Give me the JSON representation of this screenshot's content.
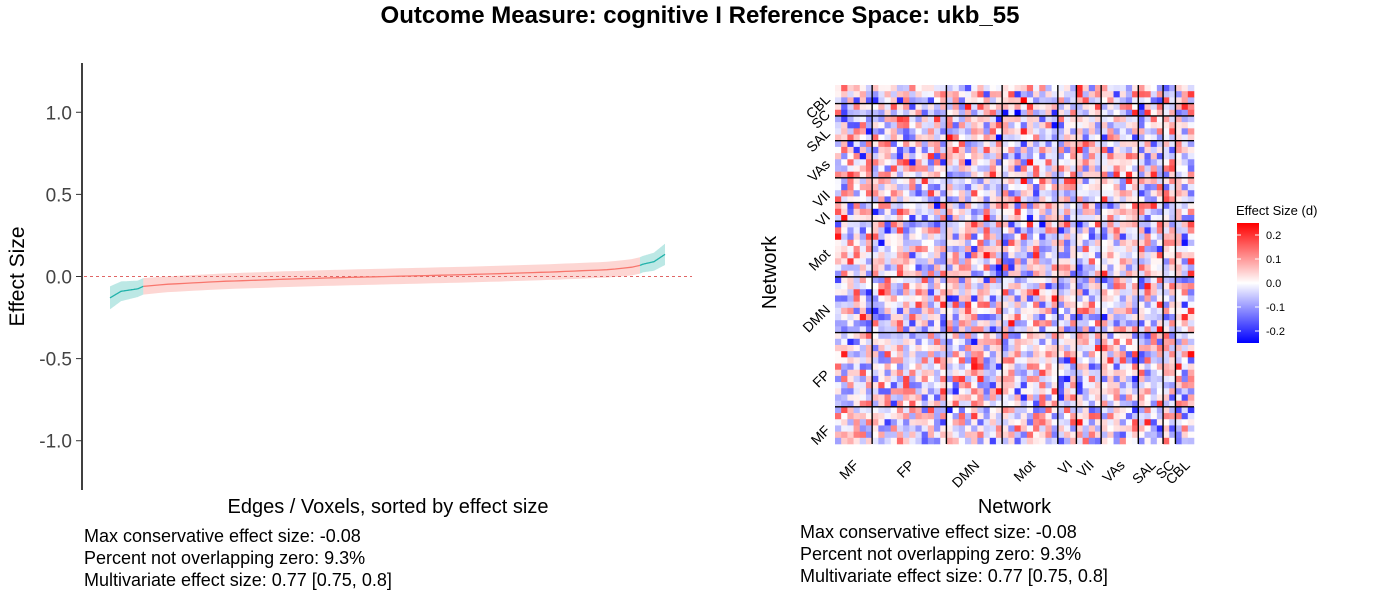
{
  "title": "Outcome Measure: cognitive   I  Reference Space: ukb_55",
  "chart_data": [
    {
      "type": "line",
      "xlabel": "Edges / Voxels, sorted by effect size",
      "ylabel": "Effect Size",
      "ylim": [
        -1.3,
        1.3
      ],
      "yticks": [
        "1.0",
        "0.5",
        "0.0",
        "-0.5",
        "-1.0"
      ],
      "ytick_values": [
        1.0,
        0.5,
        0.0,
        -0.5,
        -1.0
      ],
      "x_range": [
        0,
        1
      ],
      "reference_line": 0.0,
      "colors": {
        "non_overlapping": "#20b2aa",
        "overlapping": "#f8766d"
      },
      "curve": {
        "x": [
          0,
          0.02,
          0.05,
          0.06,
          0.1,
          0.2,
          0.3,
          0.4,
          0.5,
          0.6,
          0.7,
          0.8,
          0.9,
          0.95,
          0.96,
          0.98,
          1.0
        ],
        "y": [
          -0.13,
          -0.09,
          -0.075,
          -0.06,
          -0.048,
          -0.03,
          -0.018,
          -0.008,
          0.0,
          0.008,
          0.017,
          0.028,
          0.042,
          0.06,
          0.075,
          0.09,
          0.135
        ],
        "ci_half_width": [
          0.07,
          0.06,
          0.05,
          0.05,
          0.048,
          0.048,
          0.048,
          0.048,
          0.048,
          0.048,
          0.048,
          0.048,
          0.048,
          0.05,
          0.05,
          0.055,
          0.065
        ]
      },
      "non_overlapping_fraction_low": 0.06,
      "non_overlapping_fraction_high": 0.955,
      "stats": [
        "Max conservative effect size: -0.08",
        "Percent not overlapping zero: 9.3%",
        "Multivariate effect size: 0.77 [0.75, 0.8]"
      ]
    },
    {
      "type": "heatmap",
      "xlabel": "Network",
      "ylabel": "Network",
      "networks": [
        "MF",
        "FP",
        "DMN",
        "Mot",
        "VI",
        "VII",
        "VAs",
        "SAL",
        "SC",
        "CBL"
      ],
      "network_sizes": [
        6,
        12,
        9,
        9,
        3,
        4,
        6,
        4,
        2,
        3
      ],
      "legend_title": "Effect Size (d)",
      "legend_ticks": [
        "0.2",
        "0.1",
        "0.0",
        "-0.1",
        "-0.2"
      ],
      "legend_values": [
        0.2,
        0.1,
        0.0,
        -0.1,
        -0.2
      ],
      "zlim": [
        -0.25,
        0.25
      ],
      "colors": {
        "low": "#0000ff",
        "mid": "#ffffff",
        "high": "#ff0000"
      },
      "stats": [
        "Max conservative effect size: -0.08",
        "Percent not overlapping zero: 9.3%",
        "Multivariate effect size: 0.77 [0.75, 0.8]"
      ]
    }
  ]
}
